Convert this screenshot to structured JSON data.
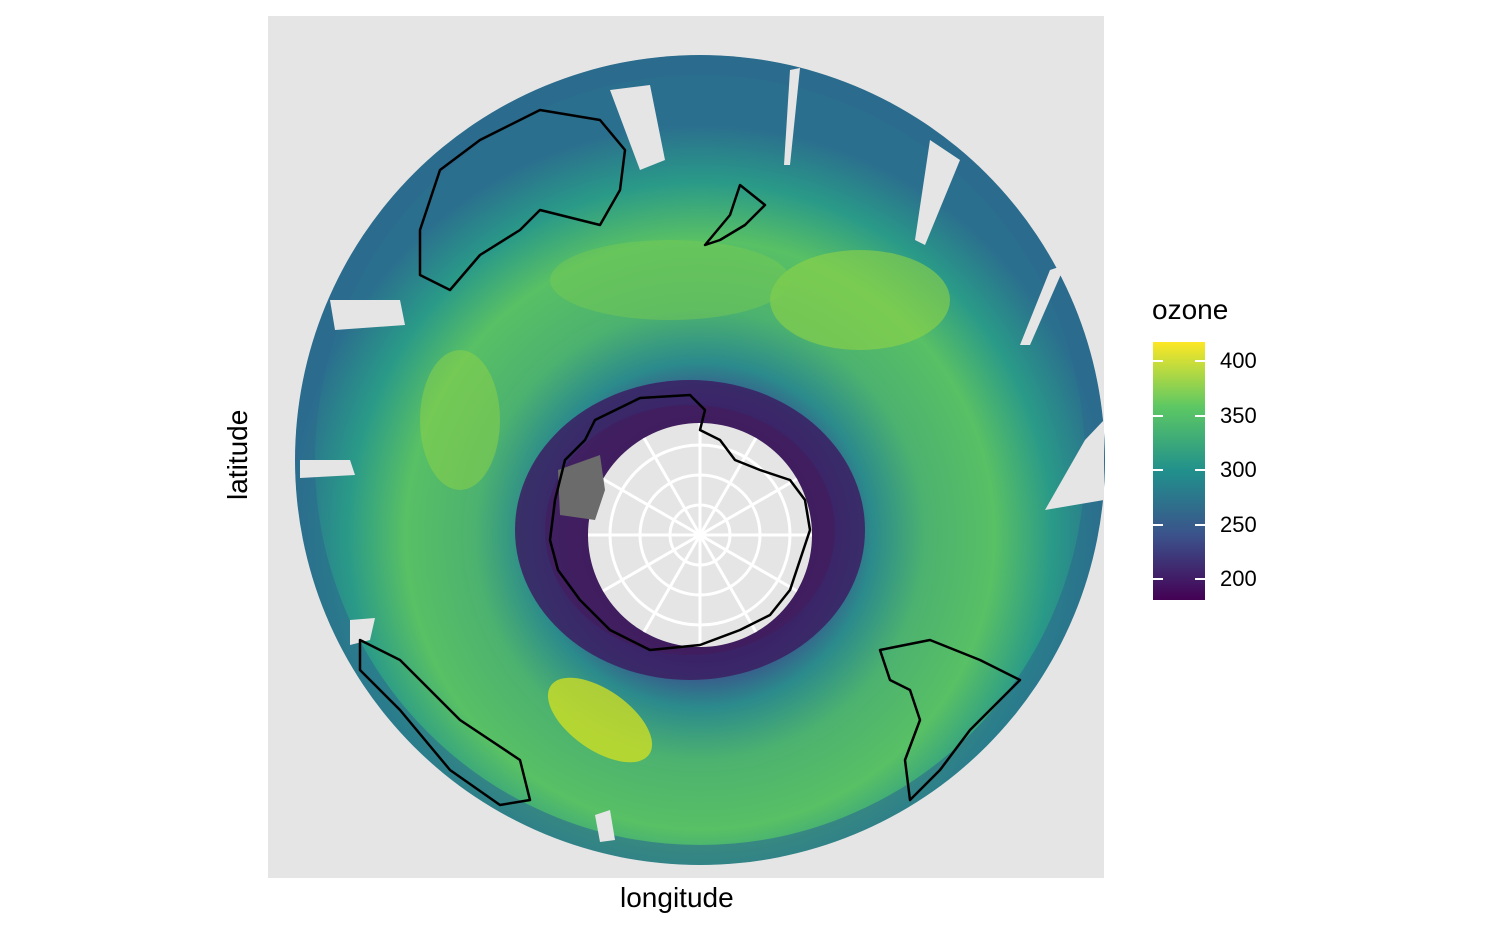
{
  "axes": {
    "x_title": "longitude",
    "y_title": "latitude"
  },
  "legend": {
    "title": "ozone",
    "ticks": [
      "400",
      "350",
      "300",
      "250",
      "200"
    ],
    "tick_values": [
      400,
      350,
      300,
      250,
      200
    ],
    "range": [
      180,
      420
    ]
  },
  "colors": {
    "panel_bg": "#e5e5e5",
    "grid": "#ffffff",
    "coast": "#000000",
    "ice_missing": "#6b6b6b",
    "viridis": [
      "#440154",
      "#3b528b",
      "#21908c",
      "#5dc863",
      "#fde725"
    ]
  },
  "chart_data": {
    "type": "heatmap",
    "projection": "south-polar stereographic",
    "xlabel": "longitude",
    "ylabel": "latitude",
    "fill_label": "ozone",
    "fill_range": [
      180,
      420
    ],
    "grid": true,
    "legend_position": "right"
  }
}
